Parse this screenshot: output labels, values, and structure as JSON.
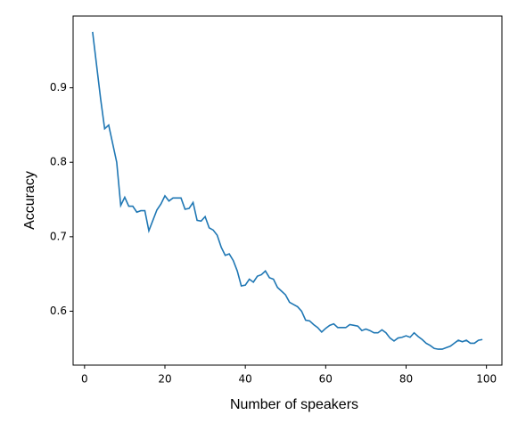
{
  "chart_data": {
    "type": "line",
    "xlabel": "Number of speakers",
    "ylabel": "Accuracy",
    "x": [
      2,
      3,
      4,
      5,
      6,
      7,
      8,
      9,
      10,
      11,
      12,
      13,
      14,
      15,
      16,
      17,
      18,
      19,
      20,
      21,
      22,
      23,
      24,
      25,
      26,
      27,
      28,
      29,
      30,
      31,
      32,
      33,
      34,
      35,
      36,
      37,
      38,
      39,
      40,
      41,
      42,
      43,
      44,
      45,
      46,
      47,
      48,
      49,
      50,
      51,
      52,
      53,
      54,
      55,
      56,
      57,
      58,
      59,
      60,
      61,
      62,
      63,
      64,
      65,
      66,
      67,
      68,
      69,
      70,
      71,
      72,
      73,
      74,
      75,
      76,
      77,
      78,
      79,
      80,
      81,
      82,
      83,
      84,
      85,
      86,
      87,
      88,
      89,
      90,
      91,
      92,
      93,
      94,
      95,
      96,
      97,
      98,
      99
    ],
    "series": [
      {
        "color": "#1f77b4",
        "values": [
          0.975,
          0.93,
          0.885,
          0.845,
          0.85,
          0.825,
          0.8,
          0.742,
          0.753,
          0.741,
          0.741,
          0.733,
          0.735,
          0.735,
          0.708,
          0.722,
          0.736,
          0.744,
          0.755,
          0.748,
          0.752,
          0.752,
          0.752,
          0.737,
          0.738,
          0.746,
          0.722,
          0.721,
          0.727,
          0.712,
          0.709,
          0.702,
          0.686,
          0.675,
          0.677,
          0.668,
          0.654,
          0.634,
          0.635,
          0.643,
          0.639,
          0.647,
          0.649,
          0.654,
          0.645,
          0.643,
          0.632,
          0.627,
          0.622,
          0.612,
          0.609,
          0.606,
          0.6,
          0.588,
          0.587,
          0.582,
          0.578,
          0.572,
          0.577,
          0.581,
          0.583,
          0.578,
          0.578,
          0.578,
          0.582,
          0.581,
          0.58,
          0.574,
          0.576,
          0.574,
          0.571,
          0.571,
          0.575,
          0.571,
          0.564,
          0.56,
          0.564,
          0.565,
          0.567,
          0.565,
          0.571,
          0.566,
          0.562,
          0.557,
          0.554,
          0.55,
          0.549,
          0.549,
          0.551,
          0.553,
          0.557,
          0.561,
          0.559,
          0.561,
          0.557,
          0.557,
          0.561,
          0.562
        ]
      }
    ],
    "xlim": [
      -2.85,
      103.85
    ],
    "xticks": [
      0,
      20,
      40,
      60,
      80,
      100
    ],
    "ylim": [
      0.5276,
      0.9964
    ],
    "yticks": [
      0.6,
      0.7,
      0.8,
      0.9
    ]
  }
}
